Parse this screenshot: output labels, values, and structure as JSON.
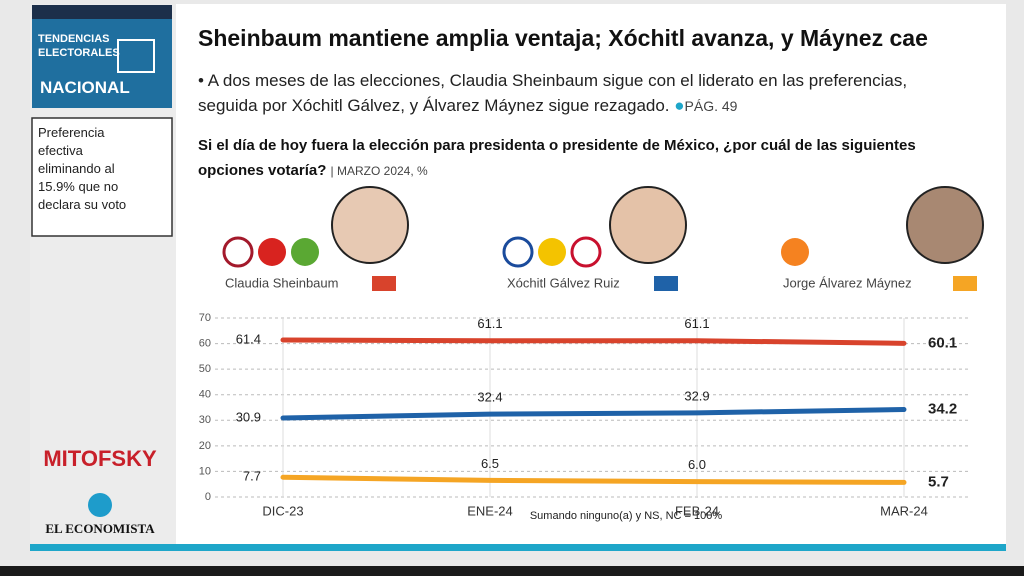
{
  "page": {
    "section_top": "TENDENCIAS ELECTORALES",
    "section_bottom": "NACIONAL",
    "note": "Preferencia efectiva eliminando al 15.9% que no declara su voto",
    "subtitle": "• A dos meses de las elecciones, Claudia Sheinbaum sigue con el liderato en las preferencias, seguida por Xóchitl Gálvez, y Álvarez Máynez sigue rezagado.",
    "page_ref": "PÁG. 49",
    "source_1": "MITOFSKY",
    "source_2": "EL ECONOMISTA"
  },
  "chart_data": {
    "type": "line",
    "title": "Sheinbaum mantiene amplia ventaja; Xóchitl avanza, y Máynez cae",
    "question": "Si el día de hoy fuera la elección para presidenta o presidente de México, ¿por cuál de las siguientes opciones votaría?",
    "period": "MARZO 2024, %",
    "footnote": "Sumando ninguno(a) y NS, NC = 100%",
    "categories": [
      "DIC-23",
      "ENE-24",
      "FEB-24",
      "MAR-24"
    ],
    "series": [
      {
        "name": "Claudia Sheinbaum",
        "color": "#d8432c",
        "values": [
          61.4,
          61.1,
          61.1,
          60.1
        ],
        "value_labels": [
          "61.4",
          "61.1",
          "61.1",
          "60.1"
        ]
      },
      {
        "name": "Xóchitl Gálvez Ruiz",
        "color": "#1f62a8",
        "values": [
          30.9,
          32.4,
          32.9,
          34.2
        ],
        "value_labels": [
          "30.9",
          "32.4",
          "32.9",
          "34.2"
        ]
      },
      {
        "name": "Jorge Álvarez Máynez",
        "color": "#f5a524",
        "values": [
          7.7,
          6.5,
          6,
          5.7
        ],
        "value_labels": [
          "7.7",
          "6.5",
          "6.0",
          "5.7"
        ]
      }
    ],
    "ylim": [
      0,
      70
    ],
    "yticks": [
      0,
      10,
      20,
      30,
      40,
      50,
      60,
      70
    ],
    "grid": true
  }
}
